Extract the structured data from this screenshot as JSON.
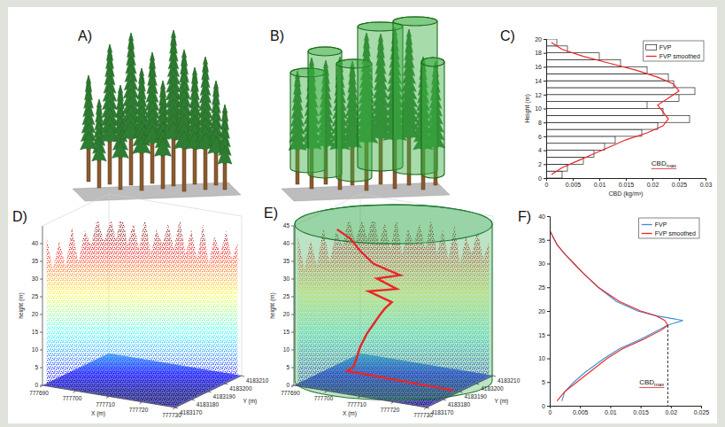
{
  "chart_data": [
    {
      "type": "illustration",
      "label": "A)"
    },
    {
      "type": "illustration",
      "label": "B)"
    },
    {
      "type": "bar",
      "label": "C)",
      "orientation": "horizontal",
      "bins": [
        0,
        1,
        2,
        3,
        4,
        5,
        6,
        7,
        8,
        9,
        10,
        11,
        12,
        13,
        14,
        15,
        16,
        17,
        18,
        19,
        20
      ],
      "series": [
        {
          "name": "FVP",
          "type": "bar",
          "color": "#ffffff",
          "values": [
            0.003,
            0.004,
            0.007,
            0.009,
            0.011,
            0.013,
            0.018,
            0.021,
            0.027,
            0.022,
            0.019,
            0.025,
            0.028,
            0.024,
            0.023,
            0.019,
            0.014,
            0.01,
            0.004,
            0.002
          ]
        },
        {
          "name": "FVP smoothed",
          "type": "line",
          "color": "#e8262a",
          "y": [
            0.5,
            1.5,
            2.5,
            3.5,
            4.5,
            5.5,
            6.5,
            7.5,
            8.5,
            9.5,
            10.5,
            11.5,
            12.5,
            13.5,
            14.5,
            15.5,
            16.5,
            17.5,
            18.5,
            19.5
          ],
          "values": [
            0.001,
            0.003,
            0.006,
            0.009,
            0.012,
            0.015,
            0.019,
            0.022,
            0.023,
            0.022,
            0.021,
            0.023,
            0.025,
            0.024,
            0.021,
            0.017,
            0.012,
            0.007,
            0.003,
            0.001
          ]
        }
      ],
      "xlabel": "CBD (kg/m³)",
      "ylabel": "Height (m)",
      "xlim": [
        0,
        0.03
      ],
      "xticks": [
        0,
        0.005,
        0.01,
        0.015,
        0.02,
        0.025,
        0.03
      ],
      "ylim": [
        0,
        20
      ],
      "yticks": [
        0,
        2,
        4,
        6,
        8,
        10,
        12,
        14,
        16,
        18,
        20
      ],
      "legend": "upper right",
      "annotation": {
        "text": "CBD",
        "subscript": "max"
      }
    },
    {
      "type": "point_cloud",
      "label": "D)",
      "xlabel": "X (m)",
      "ylabel": "Y (m)",
      "zlabel": "height (m)",
      "xlim": [
        777690,
        777730
      ],
      "xticks": [
        777690,
        777700,
        777710,
        777720,
        777730
      ],
      "ylim": [
        4183170,
        4183210
      ],
      "yticks": [
        4183170,
        4183180,
        4183190,
        4183200,
        4183210
      ],
      "zlim": [
        0,
        45
      ],
      "zticks": [
        0,
        5,
        10,
        15,
        20,
        25,
        30,
        35,
        40
      ]
    },
    {
      "type": "point_cloud",
      "label": "E)",
      "xlabel": "X (m)",
      "ylabel": "Y (m)",
      "zlabel": "height (m)",
      "xlim": [
        777690,
        777730
      ],
      "xticks": [
        777690,
        777700,
        777710,
        777720,
        777730
      ],
      "ylim": [
        4183170,
        4183210
      ],
      "yticks": [
        4183170,
        4183180,
        4183190,
        4183200,
        4183210
      ],
      "zlim": [
        0,
        45
      ],
      "zticks": [
        0,
        5,
        10,
        15,
        20,
        25,
        30,
        35,
        40,
        45
      ],
      "profile": {
        "color": "#e8262a",
        "heights": [
          0,
          0.5,
          2,
          5,
          8,
          10,
          12,
          15,
          18,
          20,
          22,
          24,
          26,
          28,
          30,
          32,
          35,
          38,
          40
        ],
        "x": [
          777728,
          777696,
          777698,
          777699,
          777700,
          777701,
          777702,
          777704,
          777706,
          777707.5,
          777709.5,
          777702.5,
          777711,
          777705,
          777712,
          777704,
          777700,
          777697,
          777693
        ]
      }
    },
    {
      "type": "line",
      "label": "F)",
      "y": [
        1,
        3,
        5,
        7,
        10,
        12,
        14,
        16,
        17,
        18,
        19,
        20,
        22,
        25,
        28,
        30,
        32,
        34,
        36,
        37
      ],
      "series": [
        {
          "name": "FVP",
          "color": "#3a8fd6",
          "values": [
            0.002,
            0.0025,
            0.004,
            0.0058,
            0.009,
            0.0115,
            0.015,
            0.018,
            0.0195,
            0.022,
            0.0175,
            0.0145,
            0.011,
            0.008,
            0.0055,
            0.004,
            0.0025,
            0.0012,
            0.0004,
            0
          ]
        },
        {
          "name": "FVP smoothed",
          "color": "#e8262a",
          "values": [
            0.0012,
            0.0025,
            0.0045,
            0.0065,
            0.0095,
            0.012,
            0.0155,
            0.0185,
            0.0195,
            0.019,
            0.0175,
            0.015,
            0.0115,
            0.008,
            0.0055,
            0.004,
            0.0025,
            0.0012,
            0.0004,
            0
          ]
        }
      ],
      "xlim": [
        0,
        0.025
      ],
      "xticks": [
        0,
        0.005,
        0.01,
        0.015,
        0.02,
        0.025
      ],
      "ylim": [
        0,
        40
      ],
      "yticks": [
        0,
        5,
        10,
        15,
        20,
        25,
        30,
        35,
        40
      ],
      "legend": "upper right",
      "annotation": {
        "text": "CBD",
        "subscript": "max",
        "value": 0.0195
      }
    }
  ]
}
